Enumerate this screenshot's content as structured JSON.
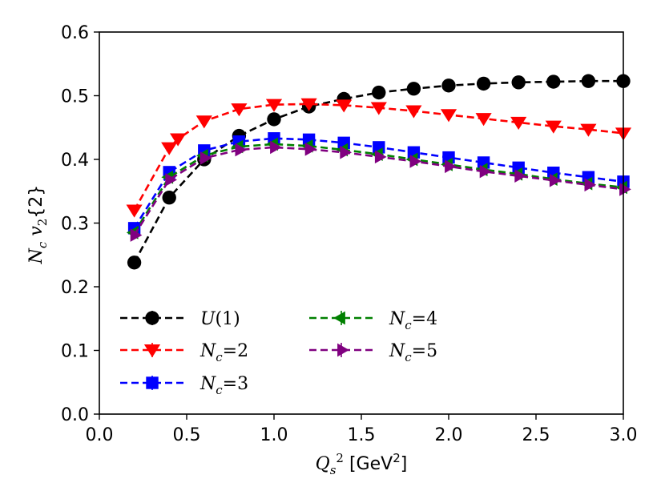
{
  "chart_data": {
    "type": "line",
    "title": "",
    "xlabel": "Q_s^2 [GeV^2]",
    "ylabel": "N_c v_2{2}",
    "xlim": [
      0.0,
      3.0
    ],
    "ylim": [
      0.0,
      0.6
    ],
    "xticks": [
      "0.0",
      "0.5",
      "1.0",
      "1.5",
      "2.0",
      "2.5",
      "3.0"
    ],
    "yticks": [
      "0.0",
      "0.1",
      "0.2",
      "0.3",
      "0.4",
      "0.5",
      "0.6"
    ],
    "grid": false,
    "legend_position": "lower-left",
    "x": [
      0.2,
      0.4,
      0.45,
      0.6,
      0.8,
      1.0,
      1.2,
      1.4,
      1.6,
      1.8,
      2.0,
      2.2,
      2.4,
      2.6,
      2.8,
      3.0
    ],
    "series": [
      {
        "name": "U(1)",
        "color": "#000000",
        "marker": "circle",
        "x": [
          0.2,
          0.4,
          0.6,
          0.8,
          1.0,
          1.2,
          1.4,
          1.6,
          1.8,
          2.0,
          2.2,
          2.4,
          2.6,
          2.8,
          3.0
        ],
        "values": [
          0.238,
          0.34,
          0.4,
          0.437,
          0.463,
          0.483,
          0.495,
          0.505,
          0.511,
          0.516,
          0.519,
          0.521,
          0.522,
          0.523,
          0.523
        ]
      },
      {
        "name": "N_c=2",
        "color": "#ff0000",
        "marker": "triangle-down",
        "x": [
          0.2,
          0.4,
          0.45,
          0.6,
          0.8,
          1.0,
          1.2,
          1.4,
          1.6,
          1.8,
          2.0,
          2.2,
          2.4,
          2.6,
          2.8,
          3.0
        ],
        "values": [
          0.32,
          0.418,
          0.432,
          0.46,
          0.479,
          0.486,
          0.487,
          0.485,
          0.481,
          0.476,
          0.47,
          0.464,
          0.458,
          0.452,
          0.447,
          0.441
        ]
      },
      {
        "name": "N_c=3",
        "color": "#0000ff",
        "marker": "square",
        "x": [
          0.2,
          0.4,
          0.6,
          0.8,
          1.0,
          1.2,
          1.4,
          1.6,
          1.8,
          2.0,
          2.2,
          2.4,
          2.6,
          2.8,
          3.0
        ],
        "values": [
          0.292,
          0.38,
          0.414,
          0.428,
          0.433,
          0.431,
          0.426,
          0.419,
          0.411,
          0.403,
          0.395,
          0.387,
          0.379,
          0.372,
          0.365
        ]
      },
      {
        "name": "N_c=4",
        "color": "#008000",
        "marker": "tri-left",
        "x": [
          0.2,
          0.4,
          0.6,
          0.8,
          1.0,
          1.2,
          1.4,
          1.6,
          1.8,
          2.0,
          2.2,
          2.4,
          2.6,
          2.8,
          3.0
        ],
        "values": [
          0.285,
          0.372,
          0.406,
          0.42,
          0.424,
          0.421,
          0.415,
          0.408,
          0.4,
          0.392,
          0.384,
          0.377,
          0.369,
          0.362,
          0.356
        ]
      },
      {
        "name": "N_c=5",
        "color": "#800080",
        "marker": "tri-right",
        "x": [
          0.2,
          0.4,
          0.6,
          0.8,
          1.0,
          1.2,
          1.4,
          1.6,
          1.8,
          2.0,
          2.2,
          2.4,
          2.6,
          2.8,
          3.0
        ],
        "values": [
          0.281,
          0.368,
          0.402,
          0.415,
          0.419,
          0.416,
          0.411,
          0.404,
          0.397,
          0.389,
          0.381,
          0.374,
          0.367,
          0.36,
          0.353
        ]
      }
    ],
    "legend": [
      [
        "U(1)",
        "N_c=4"
      ],
      [
        "N_c=2",
        "N_c=5"
      ],
      [
        "N_c=3"
      ]
    ]
  }
}
